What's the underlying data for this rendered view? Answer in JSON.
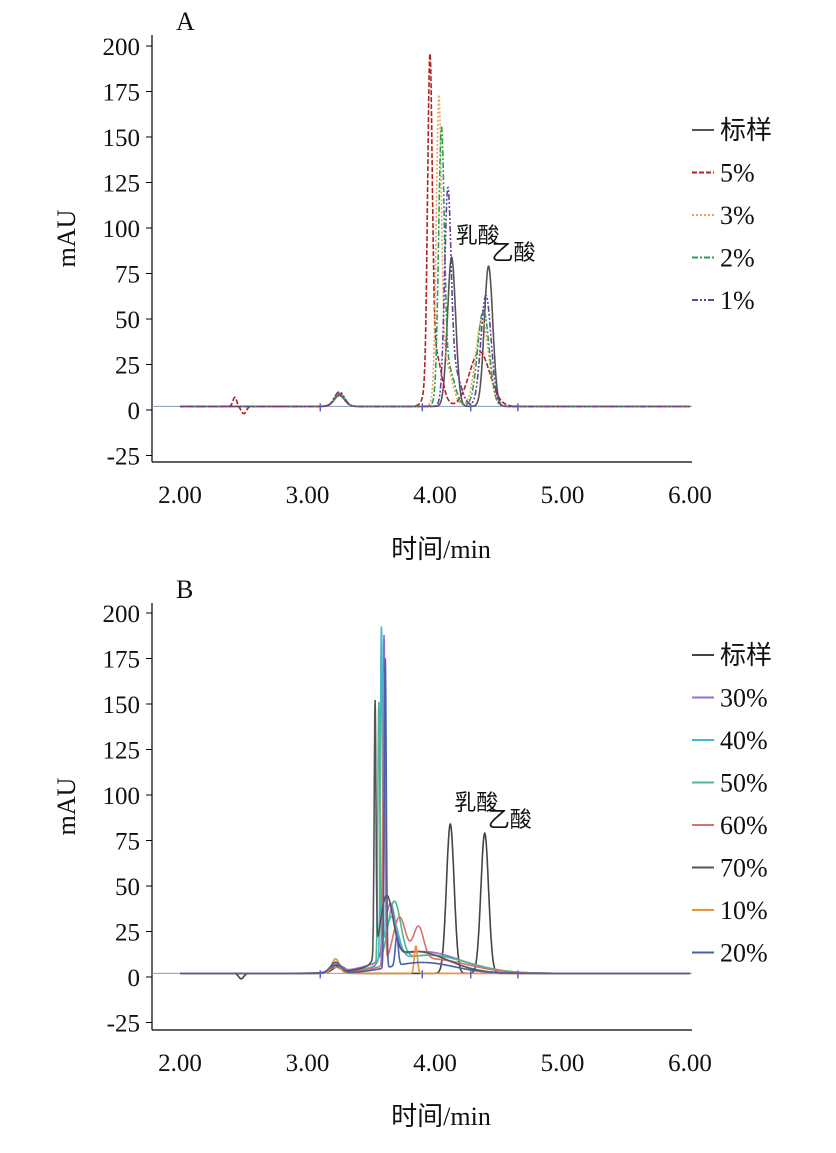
{
  "chart_data": [
    {
      "type": "line",
      "panel_label": "A",
      "xlabel": "时间/min",
      "ylabel": "mAU",
      "xlim": [
        2.0,
        6.0
      ],
      "ylim": [
        -25,
        200
      ],
      "xticks": [
        "2.00",
        "3.00",
        "4.00",
        "5.00",
        "6.00"
      ],
      "yticks": [
        "200",
        "175",
        "150",
        "125",
        "100",
        "75",
        "50",
        "25",
        "0",
        "-25"
      ],
      "grid": false,
      "legend_position": "right",
      "annotations": [
        {
          "text": "乳酸",
          "x": 4.13,
          "y": 84
        },
        {
          "text": "乙酸",
          "x": 4.42,
          "y": 79
        }
      ],
      "series": [
        {
          "name": "标样",
          "color": "#555555",
          "dash": "",
          "baseline": 2,
          "peaks": [
            [
              3.25,
              6,
              0.04
            ],
            [
              4.13,
              82,
              0.032
            ],
            [
              4.42,
              77,
              0.033
            ]
          ]
        },
        {
          "name": "5%",
          "color": "#b22222",
          "dash": "5,2",
          "baseline": 2,
          "peaks": [
            [
              2.43,
              5,
              0.015
            ],
            [
              2.5,
              -4,
              0.02
            ],
            [
              3.25,
              7,
              0.04
            ],
            [
              3.96,
              172,
              0.018
            ],
            [
              4.0,
              30,
              0.05
            ],
            [
              4.35,
              30,
              0.08
            ]
          ]
        },
        {
          "name": "3%",
          "color": "#f0a050",
          "dash": "2,2",
          "baseline": 2,
          "peaks": [
            [
              3.25,
              7,
              0.04
            ],
            [
              4.03,
              155,
              0.02
            ],
            [
              4.08,
              25,
              0.05
            ],
            [
              4.37,
              48,
              0.05
            ]
          ]
        },
        {
          "name": "2%",
          "color": "#2e9e5a",
          "dash": "6,2,2,2",
          "baseline": 2,
          "peaks": [
            [
              3.25,
              7,
              0.04
            ],
            [
              4.05,
              140,
              0.022
            ],
            [
              4.1,
              22,
              0.05
            ],
            [
              4.38,
              53,
              0.045
            ]
          ]
        },
        {
          "name": "1%",
          "color": "#6a3fa0",
          "dash": "6,2,2,2,2,2",
          "baseline": 2,
          "peaks": [
            [
              3.25,
              8,
              0.04
            ],
            [
              4.1,
              108,
              0.025
            ],
            [
              4.15,
              20,
              0.05
            ],
            [
              4.4,
              61,
              0.04
            ]
          ]
        }
      ]
    },
    {
      "type": "line",
      "panel_label": "B",
      "xlabel": "时间/min",
      "ylabel": "mAU",
      "xlim": [
        2.0,
        6.0
      ],
      "ylim": [
        -25,
        200
      ],
      "xticks": [
        "2.00",
        "3.00",
        "4.00",
        "5.00",
        "6.00"
      ],
      "yticks": [
        "200",
        "175",
        "150",
        "125",
        "100",
        "75",
        "50",
        "25",
        "0",
        "-25"
      ],
      "grid": false,
      "legend_position": "right",
      "annotations": [
        {
          "text": "乳酸",
          "x": 4.12,
          "y": 84
        },
        {
          "text": "乙酸",
          "x": 4.39,
          "y": 79
        }
      ],
      "series": [
        {
          "name": "标样",
          "color": "#444444",
          "baseline": 2,
          "peaks": [
            [
              2.48,
              -3,
              0.02
            ],
            [
              3.25,
              4,
              0.05
            ],
            [
              4.12,
              82,
              0.03
            ],
            [
              4.39,
              77,
              0.03
            ]
          ]
        },
        {
          "name": "30%",
          "color": "#9b6cc8",
          "baseline": 2,
          "peaks": [
            [
              3.22,
              5,
              0.04
            ],
            [
              3.6,
              165,
              0.008
            ],
            [
              3.65,
              30,
              0.04
            ],
            [
              3.9,
              12,
              0.3
            ]
          ]
        },
        {
          "name": "40%",
          "color": "#3fb8d0",
          "baseline": 2,
          "peaks": [
            [
              3.22,
              5,
              0.04
            ],
            [
              3.58,
              179,
              0.008
            ],
            [
              3.66,
              25,
              0.05
            ],
            [
              3.95,
              10,
              0.3
            ]
          ]
        },
        {
          "name": "50%",
          "color": "#4db890",
          "baseline": 2,
          "peaks": [
            [
              3.22,
              5,
              0.04
            ],
            [
              3.56,
              143,
              0.008
            ],
            [
              3.68,
              33,
              0.05
            ],
            [
              3.95,
              10,
              0.3
            ]
          ]
        },
        {
          "name": "60%",
          "color": "#d9706a",
          "baseline": 2,
          "peaks": [
            [
              3.22,
              3,
              0.04
            ],
            [
              3.6,
              160,
              0.008
            ],
            [
              3.72,
              25,
              0.05
            ],
            [
              3.87,
              18,
              0.04
            ],
            [
              3.95,
              8,
              0.3
            ]
          ]
        },
        {
          "name": "70%",
          "color": "#555555",
          "baseline": 2,
          "peaks": [
            [
              3.22,
              4,
              0.04
            ],
            [
              3.53,
              138,
              0.007
            ],
            [
              3.62,
              35,
              0.05
            ],
            [
              3.85,
              12,
              0.25
            ]
          ]
        },
        {
          "name": "10%",
          "color": "#f09030",
          "baseline": 2,
          "peaks": [
            [
              3.22,
              8,
              0.03
            ],
            [
              3.85,
              15,
              0.012
            ]
          ]
        },
        {
          "name": "20%",
          "color": "#4a5fa8",
          "baseline": 2,
          "peaks": [
            [
              3.22,
              6,
              0.04
            ],
            [
              3.61,
              170,
              0.008
            ],
            [
              3.7,
              16,
              0.012
            ],
            [
              3.9,
              6,
              0.25
            ]
          ]
        }
      ]
    }
  ]
}
